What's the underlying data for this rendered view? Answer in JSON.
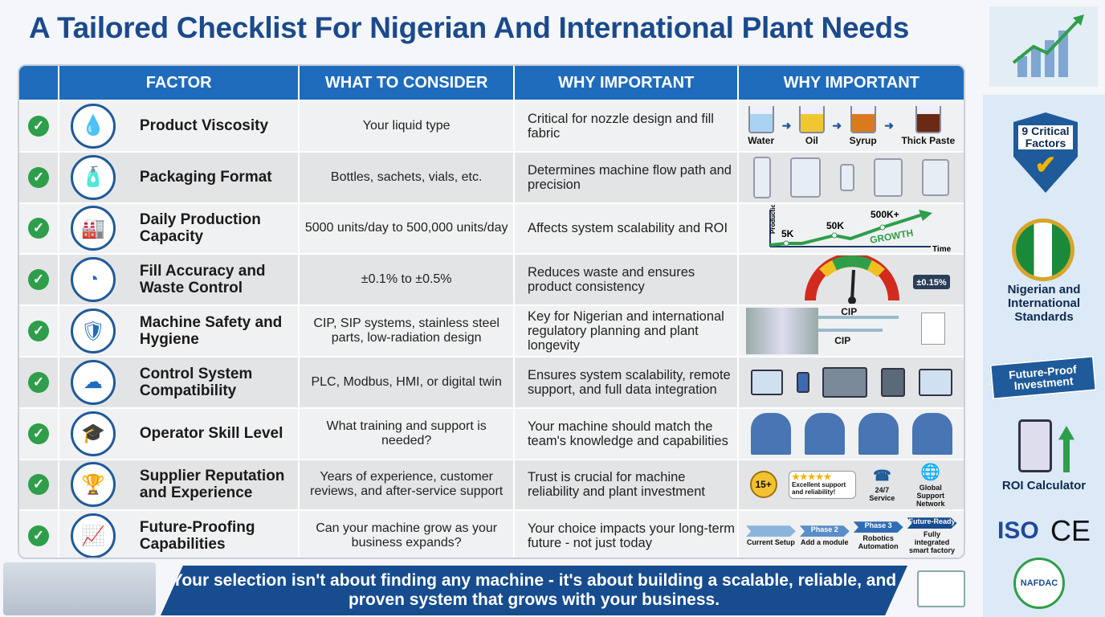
{
  "title": "A Tailored Checklist For Nigerian And International Plant Needs",
  "headers": [
    "FACTOR",
    "WHAT TO CONSIDER",
    "WHY IMPORTANT",
    "WHY IMPORTANT"
  ],
  "rows": [
    {
      "factor": "Product Viscosity",
      "icon": "droplet-gauge-icon",
      "consider": "Your liquid type",
      "why": "Critical for nozzle design and fill fabric",
      "visual": {
        "labels": [
          "Water",
          "Oil",
          "Syrup",
          "Thick Paste"
        ]
      }
    },
    {
      "factor": "Packaging Format",
      "icon": "bottles-icon",
      "consider": "Bottles, sachets, vials, etc.",
      "why": "Determines machine flow path and precision"
    },
    {
      "factor": "Daily Production Capacity",
      "icon": "production-counter-icon",
      "consider": "5000 units/day to 500,000 units/day",
      "why": "Affects system scalability and ROI",
      "visual": {
        "y_label": "Production Volume",
        "x_label": "Time",
        "points": [
          "5K",
          "50K",
          "500K+"
        ],
        "arrow_label": "GROWTH"
      }
    },
    {
      "factor": "Fill Accuracy and Waste Control",
      "icon": "accuracy-gauge-icon",
      "consider": "±0.1% to ±0.5%",
      "why": "Reduces waste and ensures product consistency",
      "visual": {
        "readout": "±0.15%"
      }
    },
    {
      "factor": "Machine Safety and Hygiene",
      "icon": "safety-shield-icon",
      "consider": "CIP, SIP systems, stainless steel parts, low-radiation design",
      "why": "Key for Nigerian and international regulatory planning and plant longevity",
      "visual": {
        "labels": [
          "CIP",
          "CIP"
        ]
      }
    },
    {
      "factor": "Control System Compatibility",
      "icon": "cloud-network-icon",
      "consider": "PLC, Modbus, HMI, or digital twin",
      "why": "Ensures system scalability, remote support, and full data integration"
    },
    {
      "factor": "Operator Skill Level",
      "icon": "graduation-book-icon",
      "consider": "What training and support is needed?",
      "why": "Your machine should match the team's knowledge and capabilities"
    },
    {
      "factor": "Supplier Reputation and Experience",
      "icon": "trophy-icon",
      "consider": "Years of experience, customer reviews, and after-service support",
      "why": "Trust is crucial for machine reliability and plant investment",
      "visual": {
        "badge": "15+",
        "review": "Excellent support and reliability!",
        "service": "24/7 Service",
        "network": "Global Support Network"
      }
    },
    {
      "factor": "Future-Proofing Capabilities",
      "icon": "growth-chart-icon",
      "consider": "Can your machine grow as your business expands?",
      "why": "Your choice impacts your long-term future - not just today",
      "visual": {
        "phases": [
          "",
          "Phase 2",
          "Phase 3",
          "Future-Ready"
        ],
        "captions": [
          "Current Setup",
          "Add a module",
          "Robotics Automation",
          "Fully integrated smart factory"
        ]
      }
    }
  ],
  "sidebar": {
    "shield": "9 Critical Factors",
    "standards": "Nigerian and International Standards",
    "ribbon": "Future-Proof Investment",
    "roi": "ROI Calculator",
    "iso": "ISO",
    "ce": "CE",
    "nafdac": "NAFDAC"
  },
  "banner": "Your selection isn't about finding any machine - it's about building a scalable, reliable, and proven system that grows with your business.",
  "colors": {
    "header": "#1f6cbc",
    "title": "#1b4a8c",
    "check": "#2e9e4a",
    "banner": "#174c8f"
  }
}
